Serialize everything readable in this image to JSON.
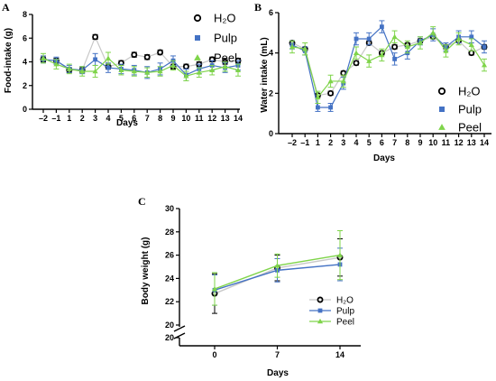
{
  "colors": {
    "h2o": "#000000",
    "pulp": "#4472c4",
    "peel": "#7fd44a"
  },
  "chart_data": [
    {
      "panel": "A",
      "type": "line",
      "xlabel": "Days",
      "ylabel": "Food-intake (g)",
      "ylim": [
        0,
        8
      ],
      "yticks": [
        0,
        2,
        4,
        6,
        8
      ],
      "x": [
        -2,
        -1,
        1,
        2,
        3,
        4,
        5,
        6,
        7,
        8,
        9,
        10,
        11,
        12,
        13,
        14
      ],
      "xtick_labels": [
        "–2",
        "–1",
        "1",
        "2",
        "3",
        "4",
        "5",
        "6",
        "7",
        "8",
        "9",
        "10",
        "11",
        "12",
        "13",
        "14"
      ],
      "legend_position": "top-right",
      "series": [
        {
          "name": "H₂O",
          "marker": "circle",
          "color": "#000000",
          "values": [
            4.2,
            4.1,
            3.3,
            3.3,
            6.1,
            3.6,
            3.9,
            4.6,
            4.4,
            4.8,
            3.6,
            3.6,
            3.8,
            4.2,
            4.0,
            4.1
          ],
          "errors": [
            0.2,
            0.2,
            0.2,
            0.2,
            0.2,
            0.2,
            0.2,
            0.2,
            0.2,
            0.2,
            0.2,
            0.2,
            0.2,
            0.2,
            0.2,
            0.2
          ]
        },
        {
          "name": "Pulp",
          "marker": "square",
          "color": "#4472c4",
          "values": [
            4.2,
            4.1,
            3.4,
            3.3,
            4.2,
            3.5,
            3.4,
            3.3,
            3.1,
            3.4,
            4.1,
            2.9,
            3.4,
            3.7,
            3.5,
            3.7
          ],
          "errors": [
            0.3,
            0.3,
            0.3,
            0.3,
            0.5,
            0.4,
            0.4,
            0.4,
            0.5,
            0.5,
            0.4,
            0.5,
            0.4,
            0.4,
            0.4,
            0.4
          ]
        },
        {
          "name": "Peel",
          "marker": "triangle",
          "color": "#7fd44a",
          "values": [
            4.3,
            3.8,
            3.4,
            3.2,
            3.2,
            4.3,
            3.3,
            3.2,
            3.1,
            3.2,
            3.7,
            2.8,
            3.1,
            3.3,
            3.6,
            3.3
          ],
          "errors": [
            0.4,
            0.4,
            0.4,
            0.4,
            0.5,
            0.5,
            0.4,
            0.4,
            0.4,
            0.4,
            0.4,
            0.4,
            0.4,
            0.4,
            0.4,
            0.5
          ]
        }
      ]
    },
    {
      "panel": "B",
      "type": "line",
      "xlabel": "Days",
      "ylabel": "Water intake (mL)",
      "ylim": [
        0,
        6
      ],
      "yticks": [
        0,
        2,
        4,
        6
      ],
      "x": [
        -2,
        -1,
        1,
        2,
        3,
        4,
        5,
        6,
        7,
        8,
        9,
        10,
        11,
        12,
        13,
        14
      ],
      "xtick_labels": [
        "–2",
        "–1",
        "1",
        "2",
        "3",
        "4",
        "5",
        "6",
        "7",
        "8",
        "9",
        "10",
        "11",
        "12",
        "13",
        "14"
      ],
      "legend_position": "bottom-right",
      "series": [
        {
          "name": "H₂O",
          "marker": "circle",
          "color": "#000000",
          "values": [
            4.5,
            4.2,
            1.9,
            2.0,
            3.0,
            3.5,
            4.5,
            4.0,
            4.3,
            4.4,
            4.6,
            4.8,
            4.3,
            4.6,
            4.0,
            4.3
          ],
          "errors": [
            0.1,
            0.1,
            0.1,
            0.1,
            0.1,
            0.1,
            0.1,
            0.1,
            0.1,
            0.1,
            0.1,
            0.1,
            0.1,
            0.1,
            0.1,
            0.1
          ]
        },
        {
          "name": "Pulp",
          "marker": "square",
          "color": "#4472c4",
          "values": [
            4.4,
            4.1,
            1.3,
            1.3,
            2.5,
            4.7,
            4.7,
            5.3,
            3.7,
            4.0,
            4.6,
            4.9,
            4.3,
            4.8,
            4.8,
            4.3
          ],
          "errors": [
            0.2,
            0.2,
            0.2,
            0.2,
            0.3,
            0.3,
            0.3,
            0.3,
            0.3,
            0.3,
            0.2,
            0.3,
            0.2,
            0.3,
            0.3,
            0.3
          ]
        },
        {
          "name": "Peel",
          "marker": "triangle",
          "color": "#7fd44a",
          "values": [
            4.3,
            4.2,
            1.8,
            2.6,
            2.6,
            4.0,
            3.6,
            3.9,
            4.8,
            4.3,
            4.5,
            5.0,
            4.1,
            4.7,
            4.4,
            3.4
          ],
          "errors": [
            0.3,
            0.3,
            0.3,
            0.3,
            0.3,
            0.3,
            0.3,
            0.3,
            0.3,
            0.3,
            0.3,
            0.3,
            0.3,
            0.3,
            0.3,
            0.3
          ]
        }
      ]
    },
    {
      "panel": "C",
      "type": "line",
      "xlabel": "Days",
      "ylabel": "Body weight (g)",
      "ylim": [
        20,
        30
      ],
      "yticks": [
        20,
        22,
        24,
        26,
        28,
        30
      ],
      "broken_axis_lower_tick": "20",
      "x": [
        0,
        7,
        14
      ],
      "xtick_labels": [
        "0",
        "7",
        "14"
      ],
      "legend_position": "bottom-right",
      "series": [
        {
          "name": "H₂O",
          "marker": "circle",
          "color": "#000000",
          "values": [
            22.7,
            24.9,
            25.8
          ],
          "errors": [
            1.7,
            1.1,
            1.6
          ]
        },
        {
          "name": "Pulp",
          "marker": "square",
          "color": "#4472c4",
          "values": [
            23.0,
            24.7,
            25.2
          ],
          "errors": [
            1.3,
            1.0,
            1.4
          ]
        },
        {
          "name": "Peel",
          "marker": "triangle",
          "color": "#7fd44a",
          "values": [
            23.1,
            25.1,
            26.0
          ],
          "errors": [
            1.4,
            1.0,
            2.1
          ]
        }
      ]
    }
  ]
}
